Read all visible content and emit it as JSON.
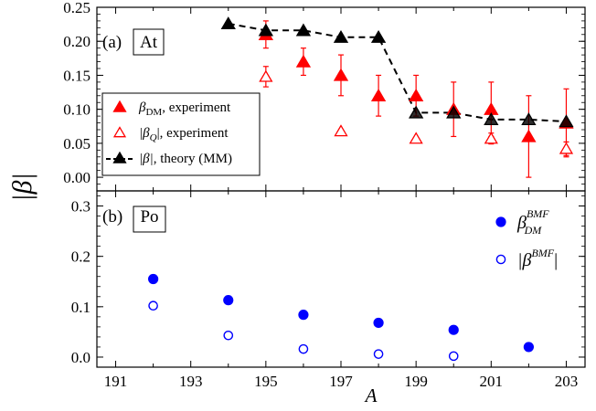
{
  "chart_data": [
    {
      "type": "scatter",
      "panel_label": "(a)",
      "boxed_label": "At",
      "ylim": [
        -0.02,
        0.25
      ],
      "yticks": [
        "0.00",
        "0.05",
        "0.10",
        "0.15",
        "0.20",
        "0.25"
      ],
      "ytick_values": [
        0.0,
        0.05,
        0.1,
        0.15,
        0.2,
        0.25
      ],
      "legend_position": "bottom-left",
      "series": [
        {
          "key": "beta_dm",
          "legend_main": "β",
          "legend_sub": "DM",
          "legend_rest": ", experiment",
          "marker": "filled-triangle",
          "color": "#ff0000",
          "x": [
            195,
            196,
            197,
            198,
            199,
            200,
            201,
            202,
            203
          ],
          "y": [
            0.21,
            0.17,
            0.15,
            0.12,
            0.12,
            0.1,
            0.1,
            0.06,
            0.08
          ],
          "err": [
            0.02,
            0.02,
            0.03,
            0.03,
            0.03,
            0.04,
            0.04,
            0.06,
            0.05
          ]
        },
        {
          "key": "beta_q",
          "legend_main": "|β",
          "legend_sub": "Q",
          "legend_rest": "|, experiment",
          "marker": "open-triangle",
          "color": "#ff0000",
          "x": [
            195,
            197,
            199,
            201,
            203
          ],
          "y": [
            0.148,
            0.068,
            0.057,
            0.057,
            0.042
          ],
          "err": [
            0.015,
            0,
            0,
            0.008,
            0.01
          ]
        },
        {
          "key": "beta_theory",
          "legend_main": "|β|",
          "legend_sub": "",
          "legend_rest": ", theory (MM)",
          "marker": "filled-triangle-dashed",
          "color": "#000000",
          "x": [
            194,
            195,
            196,
            197,
            198,
            199,
            200,
            201,
            202,
            203
          ],
          "y": [
            0.226,
            0.216,
            0.216,
            0.206,
            0.206,
            0.095,
            0.095,
            0.085,
            0.085,
            0.082
          ]
        }
      ]
    },
    {
      "type": "scatter",
      "panel_label": "(b)",
      "boxed_label": "Po",
      "ylim": [
        -0.02,
        0.33
      ],
      "yticks": [
        "0.0",
        "0.1",
        "0.2",
        "0.3"
      ],
      "ytick_values": [
        0.0,
        0.1,
        0.2,
        0.3
      ],
      "legend_position": "top-right",
      "series": [
        {
          "key": "beta_dm_bmf",
          "legend_main": "β",
          "legend_sub": "DM",
          "legend_sup": "BMF",
          "marker": "filled-circle",
          "color": "#0000ff",
          "x": [
            192,
            194,
            196,
            198,
            200,
            202
          ],
          "y": [
            0.155,
            0.113,
            0.084,
            0.068,
            0.054,
            0.02
          ]
        },
        {
          "key": "beta_bmf",
          "legend_main": "|β",
          "legend_sup": "BMF",
          "legend_rest": "|",
          "marker": "open-circle",
          "color": "#0000ff",
          "x": [
            192,
            194,
            196,
            198,
            200
          ],
          "y": [
            0.102,
            0.043,
            0.016,
            0.006,
            0.002
          ]
        }
      ]
    }
  ],
  "shared_axes": {
    "xlim": [
      190.5,
      203.5
    ],
    "xticks": [
      "191",
      "193",
      "195",
      "197",
      "199",
      "201",
      "203"
    ],
    "xtick_values": [
      191,
      193,
      195,
      197,
      199,
      201,
      203
    ],
    "xlabel": "A",
    "ylabel": "|β|"
  }
}
